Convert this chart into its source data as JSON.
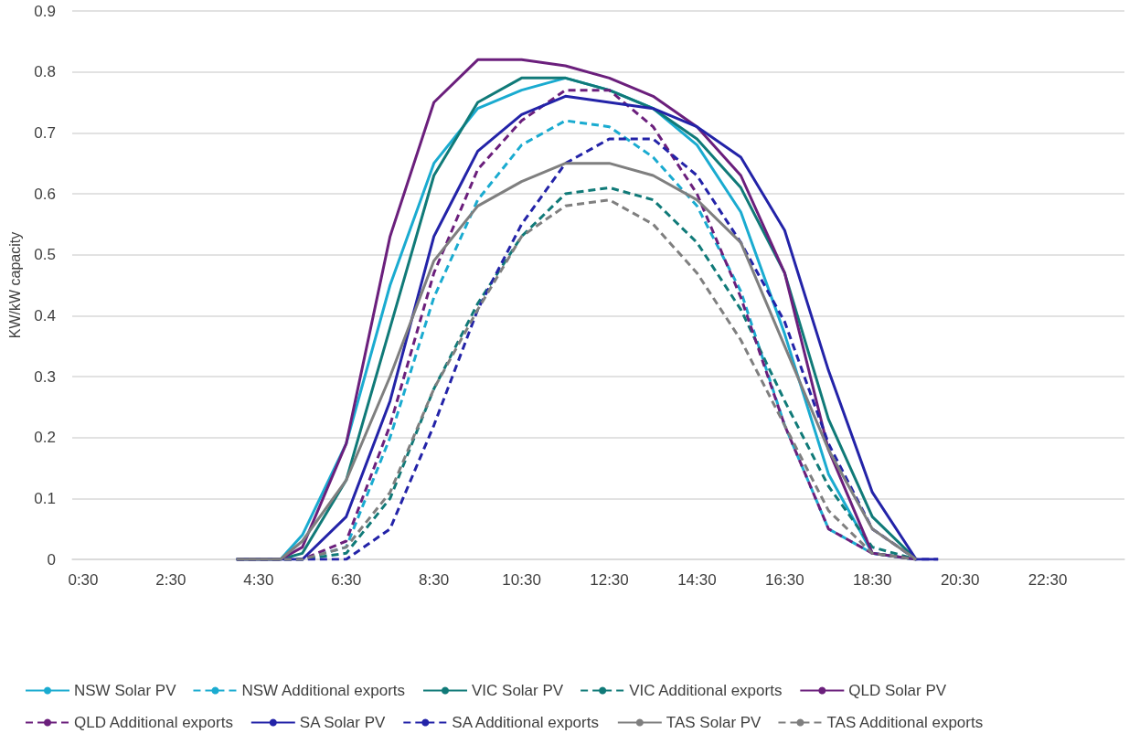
{
  "chart_data": {
    "type": "line",
    "ylabel": "KW/kW capacity",
    "x": [
      4,
      4.5,
      5,
      5.5,
      6.5,
      7.5,
      8.5,
      9.5,
      10.5,
      11.5,
      12.5,
      13.5,
      14.5,
      15.5,
      16.5,
      17.5,
      18.5,
      19.5,
      20
    ],
    "xlim": [
      0.25,
      24.25
    ],
    "xticks": [
      {
        "value": 0.5,
        "label": "0:30"
      },
      {
        "value": 2.5,
        "label": "2:30"
      },
      {
        "value": 4.5,
        "label": "4:30"
      },
      {
        "value": 6.5,
        "label": "6:30"
      },
      {
        "value": 8.5,
        "label": "8:30"
      },
      {
        "value": 10.5,
        "label": "10:30"
      },
      {
        "value": 12.5,
        "label": "12:30"
      },
      {
        "value": 14.5,
        "label": "14:30"
      },
      {
        "value": 16.5,
        "label": "16:30"
      },
      {
        "value": 18.5,
        "label": "18:30"
      },
      {
        "value": 20.5,
        "label": "20:30"
      },
      {
        "value": 22.5,
        "label": "22:30"
      }
    ],
    "ylim": [
      0,
      0.9
    ],
    "yticks": [
      0,
      0.1,
      0.2,
      0.3,
      0.4,
      0.5,
      0.6,
      0.7,
      0.8,
      0.9
    ],
    "grid": "y",
    "legend": "bottom",
    "marker": "none",
    "series": [
      {
        "name": "NSW Solar PV",
        "color": "#1aabd0",
        "line_style": "solid",
        "values": [
          0,
          0,
          0,
          0.04,
          0.19,
          0.45,
          0.65,
          0.74,
          0.77,
          0.79,
          0.77,
          0.74,
          0.68,
          0.57,
          0.37,
          0.14,
          0.01,
          0,
          null
        ]
      },
      {
        "name": "NSW Additional exports",
        "color": "#1aabd0",
        "line_style": "dashed",
        "values": [
          0,
          0,
          0,
          0,
          0.02,
          0.2,
          0.43,
          0.59,
          0.68,
          0.72,
          0.71,
          0.66,
          0.58,
          0.44,
          0.22,
          0.05,
          0.01,
          0,
          null
        ]
      },
      {
        "name": "VIC Solar PV",
        "color": "#107a78",
        "line_style": "solid",
        "values": [
          0,
          0,
          0,
          0.01,
          0.13,
          0.38,
          0.63,
          0.75,
          0.79,
          0.79,
          0.77,
          0.74,
          0.69,
          0.61,
          0.47,
          0.23,
          0.07,
          0,
          null
        ]
      },
      {
        "name": "VIC Additional exports",
        "color": "#107a78",
        "line_style": "dashed",
        "values": [
          0,
          0,
          0,
          0,
          0.01,
          0.1,
          0.28,
          0.42,
          0.53,
          0.6,
          0.61,
          0.59,
          0.52,
          0.41,
          0.26,
          0.12,
          0.02,
          0,
          null
        ]
      },
      {
        "name": "QLD Solar PV",
        "color": "#6b1f7c",
        "line_style": "solid",
        "values": [
          0,
          0,
          0,
          0.02,
          0.19,
          0.53,
          0.75,
          0.82,
          0.82,
          0.81,
          0.79,
          0.76,
          0.71,
          0.63,
          0.47,
          0.18,
          0.01,
          0,
          null
        ]
      },
      {
        "name": "QLD Additional exports",
        "color": "#6b1f7c",
        "line_style": "dashed",
        "values": [
          0,
          0,
          0,
          0,
          0.03,
          0.22,
          0.47,
          0.64,
          0.72,
          0.77,
          0.77,
          0.71,
          0.6,
          0.43,
          0.22,
          0.05,
          0.01,
          0,
          null
        ]
      },
      {
        "name": "SA Solar PV",
        "color": "#2323a8",
        "line_style": "solid",
        "values": [
          0,
          0,
          0,
          0,
          0.07,
          0.26,
          0.53,
          0.67,
          0.73,
          0.76,
          0.75,
          0.74,
          0.71,
          0.66,
          0.54,
          0.31,
          0.11,
          0,
          0
        ]
      },
      {
        "name": "SA Additional exports",
        "color": "#2323a8",
        "line_style": "dashed",
        "values": [
          0,
          0,
          0,
          0,
          0,
          0.05,
          0.22,
          0.41,
          0.55,
          0.65,
          0.69,
          0.69,
          0.63,
          0.52,
          0.39,
          0.19,
          0.05,
          0,
          0
        ]
      },
      {
        "name": "TAS Solar PV",
        "color": "#7f7f7f",
        "line_style": "solid",
        "values": [
          0,
          0,
          0,
          0.03,
          0.13,
          0.3,
          0.49,
          0.58,
          0.62,
          0.65,
          0.65,
          0.63,
          0.59,
          0.52,
          0.35,
          0.18,
          0.05,
          0,
          null
        ]
      },
      {
        "name": "TAS Additional exports",
        "color": "#7f7f7f",
        "line_style": "dashed",
        "values": [
          0,
          0,
          0,
          0,
          0.02,
          0.11,
          0.28,
          0.41,
          0.53,
          0.58,
          0.59,
          0.55,
          0.47,
          0.36,
          0.22,
          0.08,
          0.01,
          0,
          null
        ]
      }
    ]
  }
}
